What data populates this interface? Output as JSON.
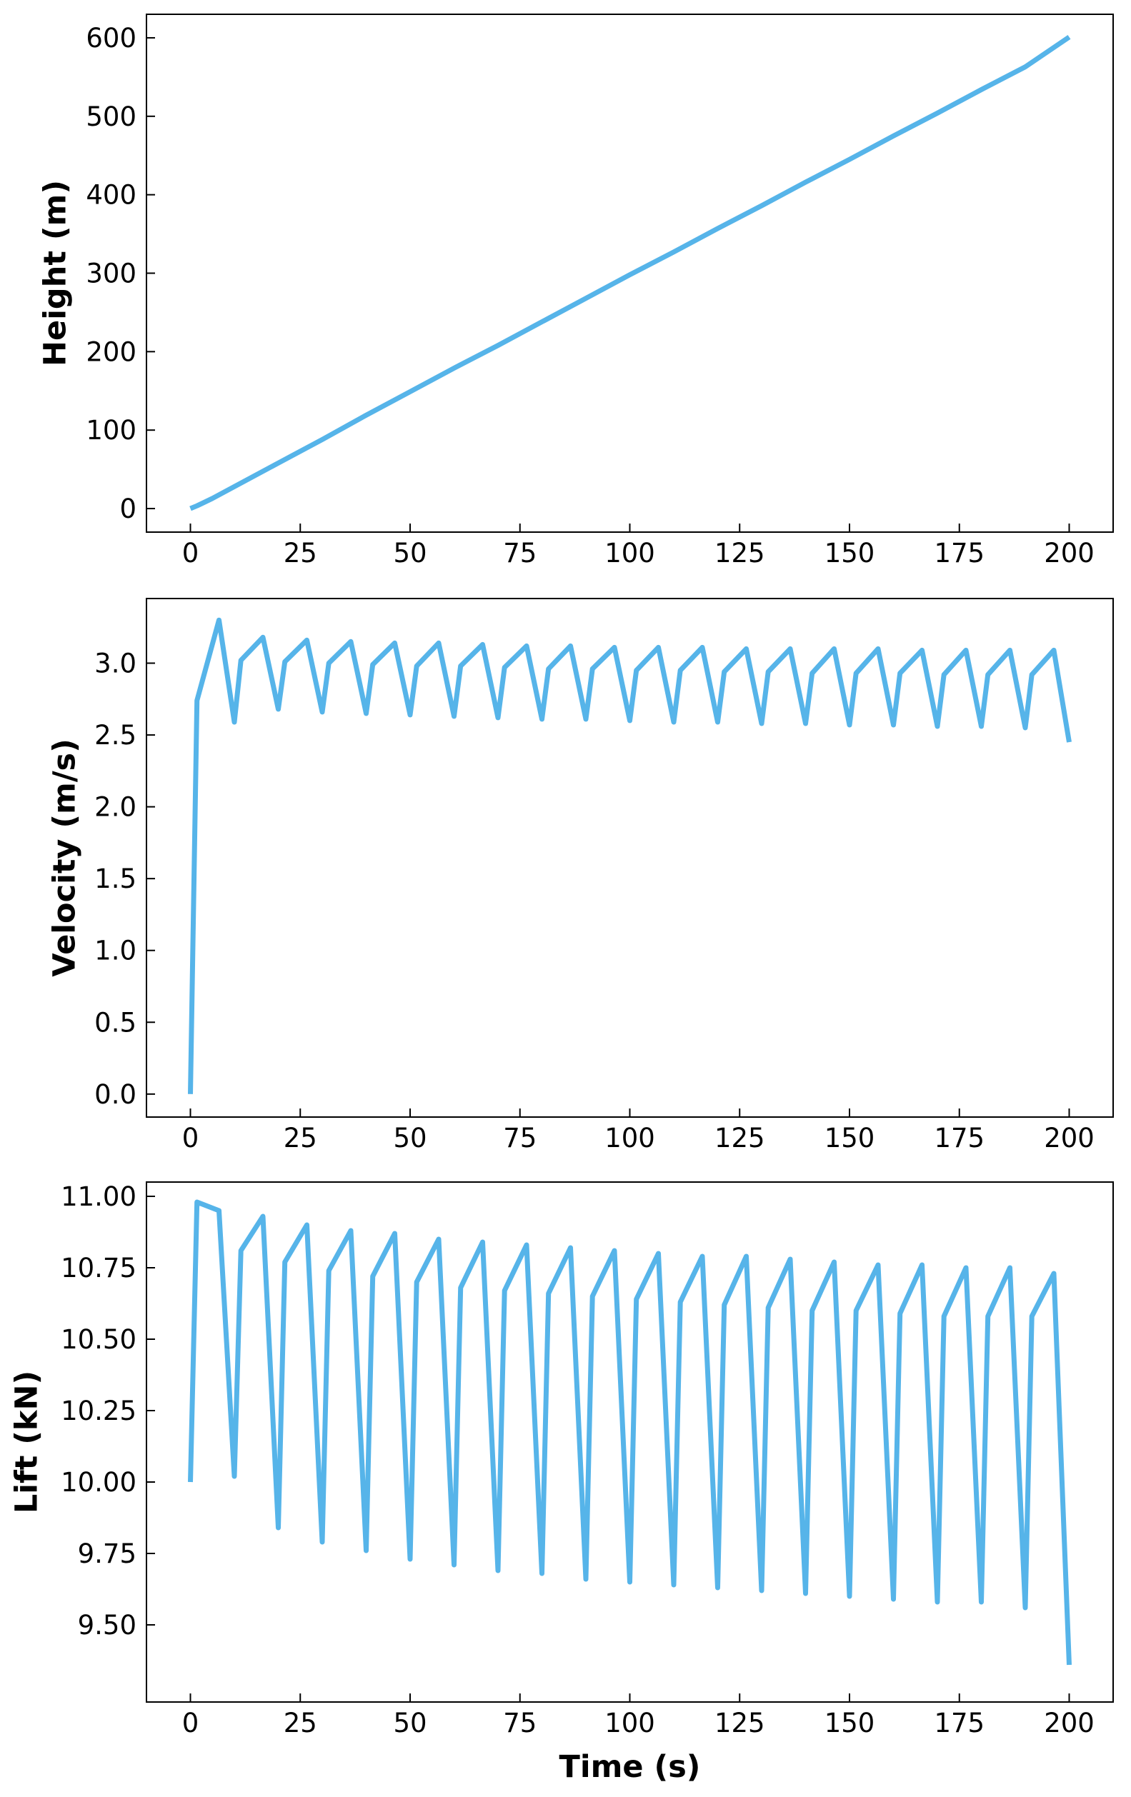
{
  "chart_data": [
    {
      "type": "line",
      "ylabel": "Height (m)",
      "xlabel": "",
      "xlim": [
        -10,
        210
      ],
      "ylim": [
        -30,
        630
      ],
      "xticks": [
        0,
        25,
        50,
        75,
        100,
        125,
        150,
        175,
        200
      ],
      "xtick_labels": [
        "0",
        "25",
        "50",
        "75",
        "100",
        "125",
        "150",
        "175",
        "200"
      ],
      "yticks": [
        0,
        100,
        200,
        300,
        400,
        500,
        600
      ],
      "ytick_labels": [
        "0",
        "100",
        "200",
        "300",
        "400",
        "500",
        "600"
      ],
      "color": "#56B4E9",
      "series": [
        {
          "x": [
            0,
            1.5,
            3,
            5,
            10,
            20,
            30,
            40,
            50,
            60,
            70,
            80,
            90,
            100,
            110,
            120,
            130,
            140,
            150,
            160,
            170,
            180,
            190,
            200
          ],
          "y": [
            0,
            3.5,
            7.5,
            13,
            28,
            58,
            88,
            119,
            149,
            179,
            208,
            238,
            268,
            298,
            327,
            357,
            386,
            416,
            445,
            475,
            504,
            534,
            563,
            601
          ]
        }
      ]
    },
    {
      "type": "line",
      "ylabel": "Velocity (m/s)",
      "xlabel": "",
      "xlim": [
        -10,
        210
      ],
      "ylim": [
        -0.16,
        3.45
      ],
      "xticks": [
        0,
        25,
        50,
        75,
        100,
        125,
        150,
        175,
        200
      ],
      "xtick_labels": [
        "0",
        "25",
        "50",
        "75",
        "100",
        "125",
        "150",
        "175",
        "200"
      ],
      "yticks": [
        0,
        0.5,
        1.0,
        1.5,
        2.0,
        2.5,
        3.0
      ],
      "ytick_labels": [
        "0.0",
        "0.5",
        "1.0",
        "1.5",
        "2.0",
        "2.5",
        "3.0"
      ],
      "color": "#56B4E9",
      "series": [
        {
          "x": [
            0,
            1.5,
            6.5,
            10,
            11.5,
            16.5,
            20,
            21.5,
            26.5,
            30,
            31.5,
            36.5,
            40,
            41.5,
            46.5,
            50,
            51.5,
            56.5,
            60,
            61.5,
            66.5,
            70,
            71.5,
            76.5,
            80,
            81.5,
            86.5,
            90,
            91.5,
            96.5,
            100,
            101.5,
            106.5,
            110,
            111.5,
            116.5,
            120,
            121.5,
            126.5,
            130,
            131.5,
            136.5,
            140,
            141.5,
            146.5,
            150,
            151.5,
            156.5,
            160,
            161.5,
            166.5,
            170,
            171.5,
            176.5,
            180,
            181.5,
            186.5,
            190,
            191.5,
            196.5,
            200
          ],
          "y": [
            0,
            2.74,
            3.3,
            2.59,
            3.02,
            3.18,
            2.68,
            3.01,
            3.16,
            2.66,
            3.0,
            3.15,
            2.65,
            2.99,
            3.14,
            2.64,
            2.98,
            3.14,
            2.63,
            2.98,
            3.13,
            2.62,
            2.97,
            3.12,
            2.61,
            2.96,
            3.12,
            2.61,
            2.96,
            3.11,
            2.6,
            2.95,
            3.11,
            2.59,
            2.95,
            3.11,
            2.59,
            2.94,
            3.1,
            2.58,
            2.94,
            3.1,
            2.58,
            2.93,
            3.1,
            2.57,
            2.93,
            3.1,
            2.57,
            2.93,
            3.09,
            2.56,
            2.92,
            3.09,
            2.56,
            2.92,
            3.09,
            2.55,
            2.92,
            3.09,
            2.45
          ]
        }
      ]
    },
    {
      "type": "line",
      "ylabel": "Lift (kN)",
      "xlabel": "Time (s)",
      "xlim": [
        -10,
        210
      ],
      "ylim": [
        9.23,
        11.05
      ],
      "xticks": [
        0,
        25,
        50,
        75,
        100,
        125,
        150,
        175,
        200
      ],
      "xtick_labels": [
        "0",
        "25",
        "50",
        "75",
        "100",
        "125",
        "150",
        "175",
        "200"
      ],
      "yticks": [
        9.5,
        9.75,
        10.0,
        10.25,
        10.5,
        10.75,
        11.0
      ],
      "ytick_labels": [
        "9.50",
        "9.75",
        "10.00",
        "10.25",
        "10.50",
        "10.75",
        "11.00"
      ],
      "color": "#56B4E9",
      "series": [
        {
          "x": [
            0,
            1.5,
            6.5,
            10,
            11.5,
            16.5,
            20,
            21.5,
            26.5,
            30,
            31.5,
            36.5,
            40,
            41.5,
            46.5,
            50,
            51.5,
            56.5,
            60,
            61.5,
            66.5,
            70,
            71.5,
            76.5,
            80,
            81.5,
            86.5,
            90,
            91.5,
            96.5,
            100,
            101.5,
            106.5,
            110,
            111.5,
            116.5,
            120,
            121.5,
            126.5,
            130,
            131.5,
            136.5,
            140,
            141.5,
            146.5,
            150,
            151.5,
            156.5,
            160,
            161.5,
            166.5,
            170,
            171.5,
            176.5,
            180,
            181.5,
            186.5,
            190,
            191.5,
            196.5,
            200
          ],
          "y": [
            10.0,
            10.98,
            10.95,
            10.02,
            10.81,
            10.93,
            9.84,
            10.77,
            10.9,
            9.79,
            10.74,
            10.88,
            9.76,
            10.72,
            10.87,
            9.73,
            10.7,
            10.85,
            9.71,
            10.68,
            10.84,
            9.69,
            10.67,
            10.83,
            9.68,
            10.66,
            10.82,
            9.66,
            10.65,
            10.81,
            9.65,
            10.64,
            10.8,
            9.64,
            10.63,
            10.79,
            9.63,
            10.62,
            10.79,
            9.62,
            10.61,
            10.78,
            9.61,
            10.6,
            10.77,
            9.6,
            10.6,
            10.76,
            9.59,
            10.59,
            10.76,
            9.58,
            10.58,
            10.75,
            9.58,
            10.58,
            10.75,
            9.56,
            10.58,
            10.73,
            9.36
          ]
        }
      ]
    }
  ]
}
